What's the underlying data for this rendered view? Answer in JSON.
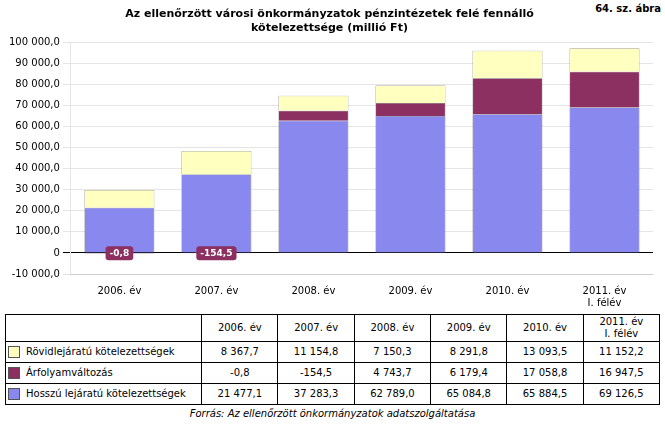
{
  "chart_data": {
    "type": "bar",
    "title": [
      "Az ellenőrzött városi önkormányzatok pénzintézetek felé fennálló",
      "kötelezettsége (millió Ft)"
    ],
    "annotations": [
      "64. sz. ábra",
      "Forrás: Az ellenőrzött önkormányzatok adatszolgáltatása"
    ],
    "categories": [
      "2006. év",
      "2007. év",
      "2008. év",
      "2009. év",
      "2010. év",
      "2011. év\nI. félév"
    ],
    "stacked": true,
    "grid": true,
    "series": [
      {
        "name": "Rövidlejáratú kötelezettségek",
        "color": "#FFFFC0",
        "values": [
          8367.7,
          11154.8,
          7150.3,
          8291.8,
          13093.5,
          11152.2
        ],
        "table_values": [
          "8 367,7",
          "11 154,8",
          "7 150,3",
          "8 291,8",
          "13 093,5",
          "11 152,2"
        ]
      },
      {
        "name": "Árfolyamváltozás",
        "color": "#8B3060",
        "values": [
          -0.8,
          -154.5,
          4743.7,
          6179.4,
          17058.8,
          16947.5
        ],
        "data_labels": true,
        "value_labels": [
          "-0,8",
          "-154,5",
          null,
          null,
          null,
          null
        ],
        "table_values": [
          "-0,8",
          "-154,5",
          "4 743,7",
          "6 179,4",
          "17 058,8",
          "16 947,5"
        ]
      },
      {
        "name": "Hosszú lejáratú kötelezettségek",
        "color": "#8888EE",
        "values": [
          21477.1,
          37283.3,
          62789.0,
          65084.8,
          65884.5,
          69126.5
        ],
        "table_values": [
          "21 477,1",
          "37 283,3",
          "62 789,0",
          "65 084,8",
          "65 884,5",
          "69 126,5"
        ]
      }
    ],
    "ylim": [
      -10000,
      100000
    ],
    "yticks": [
      {
        "value": -10000,
        "label": "-10 000,0"
      },
      0,
      {
        "value": 10000,
        "label": "10 000,0"
      },
      {
        "value": 20000,
        "label": "20 000,0"
      },
      {
        "value": 30000,
        "label": "30 000,0"
      },
      {
        "value": 40000,
        "label": "40 000,0"
      },
      {
        "value": 50000,
        "label": "50 000,0"
      },
      {
        "value": 60000,
        "label": "60 000,0"
      },
      {
        "value": 70000,
        "label": "70 000,0"
      },
      {
        "value": 80000,
        "label": "80 000,0"
      },
      {
        "value": 90000,
        "label": "90 000,0"
      },
      {
        "value": 100000,
        "label": "100 000,0"
      }
    ]
  }
}
